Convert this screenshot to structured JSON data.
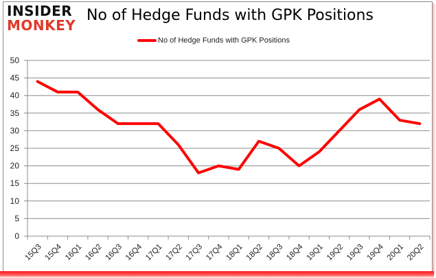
{
  "logo": {
    "line1": "INSIDER",
    "line2": "MONKEY"
  },
  "colors": {
    "series": "#ff0000",
    "grid": "#8c8c8c",
    "logo_red": "#e03a2a"
  },
  "chart_data": {
    "type": "line",
    "title": "No of Hedge Funds with GPK Positions",
    "xlabel": "",
    "ylabel": "",
    "ylim": [
      0,
      50
    ],
    "yticks": [
      0,
      5,
      10,
      15,
      20,
      25,
      30,
      35,
      40,
      45,
      50
    ],
    "grid": true,
    "legend_position": "top",
    "categories": [
      "15Q3",
      "15Q4",
      "16Q1",
      "16Q2",
      "16Q3",
      "16Q4",
      "17Q1",
      "17Q2",
      "17Q3",
      "17Q4",
      "18Q1",
      "18Q2",
      "18Q3",
      "18Q4",
      "19Q1",
      "19Q2",
      "19Q3",
      "19Q4",
      "20Q1",
      "20Q2"
    ],
    "series": [
      {
        "name": "No of Hedge Funds with GPK Positions",
        "color": "#ff0000",
        "values": [
          44,
          41,
          41,
          36,
          32,
          32,
          32,
          26,
          18,
          20,
          19,
          27,
          25,
          20,
          24,
          30,
          36,
          39,
          33,
          32
        ]
      }
    ]
  }
}
